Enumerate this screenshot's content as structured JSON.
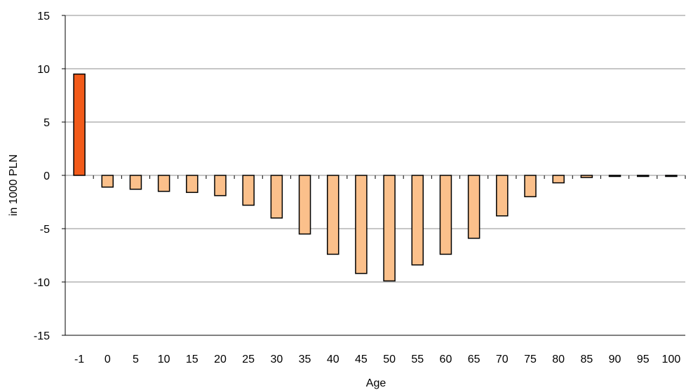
{
  "chart_data": {
    "type": "bar",
    "title": "",
    "xlabel": "Age",
    "ylabel": "in 1000 PLN",
    "ylim": [
      -15,
      15
    ],
    "yticks": [
      -15,
      -10,
      -5,
      0,
      5,
      10,
      15
    ],
    "grid": "horizontal",
    "categories": [
      "-1",
      "0",
      "5",
      "10",
      "15",
      "20",
      "25",
      "30",
      "35",
      "40",
      "45",
      "50",
      "55",
      "60",
      "65",
      "70",
      "75",
      "80",
      "85",
      "90",
      "95",
      "100"
    ],
    "values": [
      9.5,
      -1.1,
      -1.3,
      -1.5,
      -1.6,
      -1.9,
      -2.8,
      -4.0,
      -5.5,
      -7.4,
      -9.2,
      -9.9,
      -8.4,
      -7.4,
      -5.9,
      -3.8,
      -2.0,
      -0.7,
      -0.2,
      -0.1,
      -0.1,
      -0.1
    ],
    "colors": {
      "highlight": "#f25b1a",
      "bar": "#fbc08b",
      "stroke": "#000000",
      "grid": "#8c8c8c"
    }
  }
}
